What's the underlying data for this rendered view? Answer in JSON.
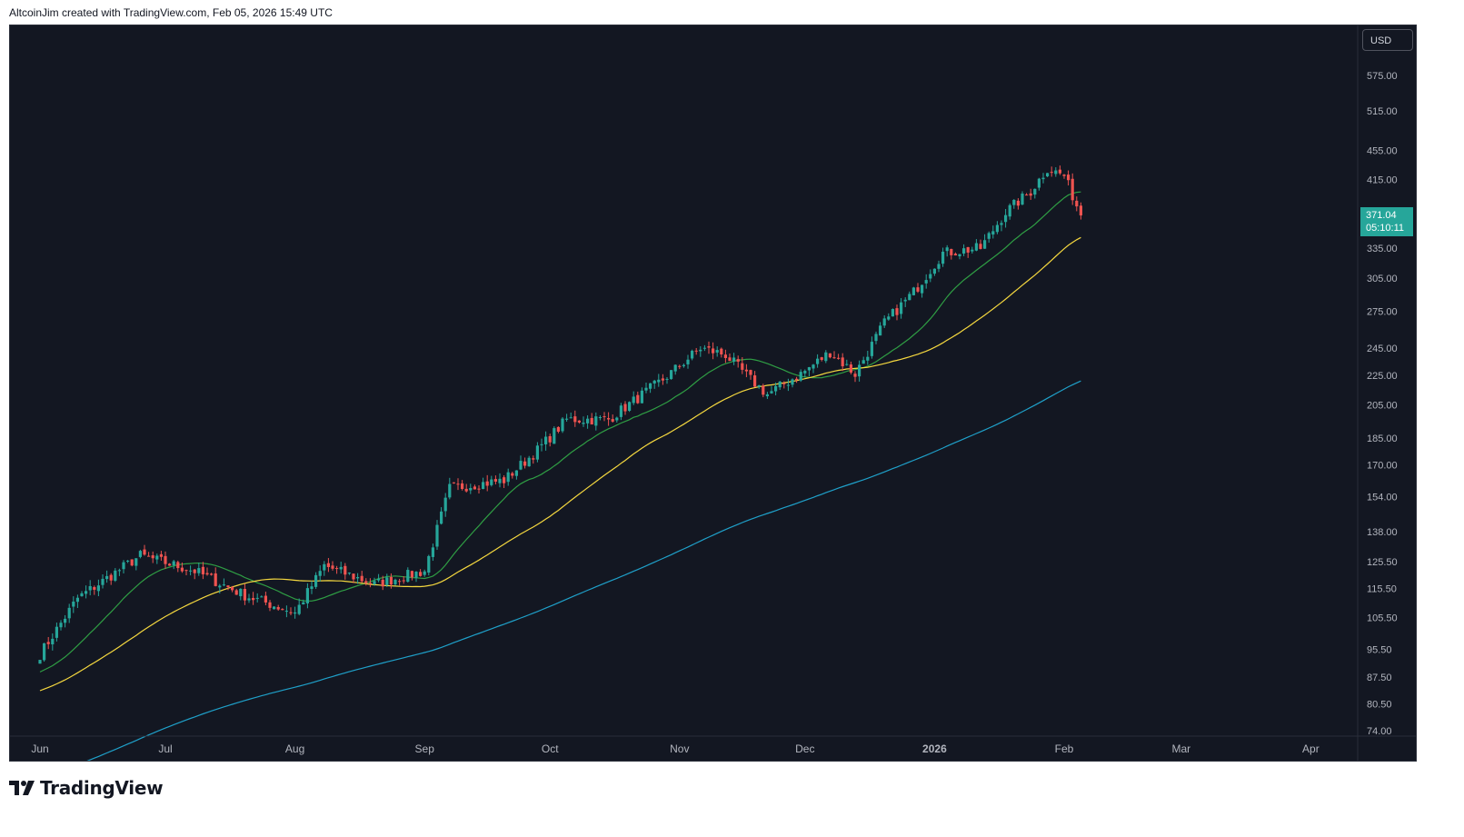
{
  "header": {
    "attribution": "AltcoinJim created with TradingView.com, Feb 05, 2026 15:49 UTC"
  },
  "toolbar": {
    "currency_label": "USD"
  },
  "last_price": {
    "value": "371.04",
    "countdown": "05:10:11"
  },
  "footer": {
    "logo_text": "TradingView"
  },
  "colors": {
    "background": "#131722",
    "up": "#26a69a",
    "down": "#ef5350",
    "ma_short": "#2f9e44",
    "ma_mid": "#f5d83f",
    "ma_long": "#1fa0c9",
    "price_tag": "#26a69a"
  },
  "chart_data": {
    "type": "candlestick",
    "scale": "log",
    "y_ticks": [
      "575.00",
      "515.00",
      "455.00",
      "415.00",
      "335.00",
      "305.00",
      "275.00",
      "245.00",
      "225.00",
      "205.00",
      "185.00",
      "170.00",
      "154.00",
      "138.00",
      "125.50",
      "115.50",
      "105.50",
      "95.50",
      "87.50",
      "80.50",
      "74.00"
    ],
    "x_ticks": [
      "Jun",
      "Jul",
      "Aug",
      "Sep",
      "Oct",
      "Nov",
      "Dec",
      "2026",
      "Feb",
      "Mar",
      "Apr"
    ],
    "ylim": [
      72,
      620
    ],
    "anchors": [
      [
        "2025-06-01",
        94
      ],
      [
        "2025-06-10",
        112
      ],
      [
        "2025-06-25",
        128
      ],
      [
        "2025-07-08",
        122
      ],
      [
        "2025-07-20",
        113
      ],
      [
        "2025-08-01",
        107
      ],
      [
        "2025-08-08",
        124
      ],
      [
        "2025-08-20",
        117
      ],
      [
        "2025-09-01",
        122
      ],
      [
        "2025-09-07",
        158
      ],
      [
        "2025-09-20",
        162
      ],
      [
        "2025-09-28",
        178
      ],
      [
        "2025-10-05",
        196
      ],
      [
        "2025-10-15",
        196
      ],
      [
        "2025-10-28",
        222
      ],
      [
        "2025-11-06",
        245
      ],
      [
        "2025-11-12",
        240
      ],
      [
        "2025-11-18",
        222
      ],
      [
        "2025-11-22",
        212
      ],
      [
        "2025-12-01",
        228
      ],
      [
        "2025-12-07",
        242
      ],
      [
        "2025-12-13",
        226
      ],
      [
        "2025-12-20",
        265
      ],
      [
        "2025-12-27",
        292
      ],
      [
        "2026-01-03",
        330
      ],
      [
        "2026-01-12",
        335
      ],
      [
        "2026-01-18",
        375
      ],
      [
        "2026-01-24",
        400
      ],
      [
        "2026-01-28",
        430
      ],
      [
        "2026-02-01",
        420
      ],
      [
        "2026-02-03",
        395
      ],
      [
        "2026-02-05",
        371.04
      ]
    ],
    "ma_series": [
      {
        "period": 20,
        "color": "#2f9e44"
      },
      {
        "period": 50,
        "color": "#f5d83f"
      },
      {
        "period": 200,
        "color": "#1fa0c9"
      }
    ]
  }
}
